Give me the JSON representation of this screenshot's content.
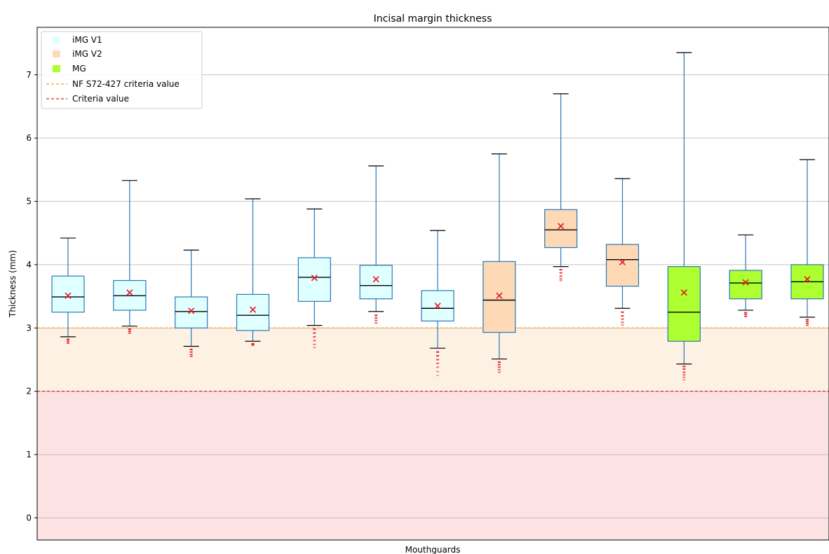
{
  "chart_data": {
    "type": "boxplot",
    "title": "Incisal margin thickness",
    "xlabel": "Mouthguards",
    "ylabel": "Thickness (mm)",
    "ylim": [
      -0.35,
      7.75
    ],
    "yticks": [
      0,
      1,
      2,
      3,
      4,
      5,
      6,
      7
    ],
    "grid": "horizontal",
    "legend_position": "top-left",
    "thresholds": [
      {
        "label": "NF S72-427 criteria value",
        "value": 3,
        "color": "#ff9f1c",
        "band_color": "#fdf1e4"
      },
      {
        "label": "Criteria value",
        "value": 2,
        "color": "#e0232a",
        "band_color": "#fde2e3"
      }
    ],
    "groups": [
      {
        "label": "iMG V1",
        "color": "#e0ffff"
      },
      {
        "label": "iMG V2",
        "color": "#fdd9b6"
      },
      {
        "label": "MG",
        "color": "#adff2f"
      }
    ],
    "boxes": [
      {
        "group": 0,
        "whisker_low": 2.86,
        "q1": 3.25,
        "median": 3.49,
        "q3": 3.82,
        "whisker_high": 4.42,
        "mean": 3.51,
        "outliers": [
          2.82,
          2.79,
          2.76
        ]
      },
      {
        "group": 0,
        "whisker_low": 3.03,
        "q1": 3.28,
        "median": 3.51,
        "q3": 3.75,
        "whisker_high": 5.33,
        "mean": 3.56,
        "outliers": [
          2.98,
          2.95,
          2.92
        ]
      },
      {
        "group": 0,
        "whisker_low": 2.71,
        "q1": 3.0,
        "median": 3.26,
        "q3": 3.49,
        "whisker_high": 4.23,
        "mean": 3.27,
        "outliers": [
          2.66,
          2.62,
          2.58,
          2.55
        ]
      },
      {
        "group": 0,
        "whisker_low": 2.79,
        "q1": 2.96,
        "median": 3.2,
        "q3": 3.53,
        "whisker_high": 5.04,
        "mean": 3.29,
        "outliers": [
          2.75,
          2.73
        ]
      },
      {
        "group": 0,
        "whisker_low": 3.04,
        "q1": 3.42,
        "median": 3.8,
        "q3": 4.11,
        "whisker_high": 4.88,
        "mean": 3.79,
        "outliers": [
          2.98,
          2.92,
          2.86,
          2.8,
          2.74,
          2.69
        ]
      },
      {
        "group": 0,
        "whisker_low": 3.26,
        "q1": 3.46,
        "median": 3.67,
        "q3": 3.99,
        "whisker_high": 5.56,
        "mean": 3.77,
        "outliers": [
          3.2,
          3.16,
          3.12,
          3.08
        ]
      },
      {
        "group": 0,
        "whisker_low": 2.68,
        "q1": 3.11,
        "median": 3.31,
        "q3": 3.59,
        "whisker_high": 4.54,
        "mean": 3.35,
        "outliers": [
          2.62,
          2.56,
          2.5,
          2.44,
          2.38,
          2.31,
          2.25
        ]
      },
      {
        "group": 1,
        "whisker_low": 2.51,
        "q1": 2.93,
        "median": 3.44,
        "q3": 4.05,
        "whisker_high": 5.75,
        "mean": 3.51,
        "outliers": [
          2.46,
          2.42,
          2.38,
          2.34,
          2.3
        ]
      },
      {
        "group": 1,
        "whisker_low": 3.97,
        "q1": 4.27,
        "median": 4.55,
        "q3": 4.87,
        "whisker_high": 6.7,
        "mean": 4.61,
        "outliers": [
          3.92,
          3.87,
          3.82,
          3.78,
          3.75
        ]
      },
      {
        "group": 1,
        "whisker_low": 3.31,
        "q1": 3.66,
        "median": 4.08,
        "q3": 4.32,
        "whisker_high": 5.36,
        "mean": 4.04,
        "outliers": [
          3.25,
          3.19,
          3.14,
          3.09,
          3.05
        ]
      },
      {
        "group": 2,
        "whisker_low": 2.43,
        "q1": 2.79,
        "median": 3.25,
        "q3": 3.97,
        "whisker_high": 7.35,
        "mean": 3.56,
        "outliers": [
          2.39,
          2.35,
          2.3,
          2.26,
          2.22,
          2.18
        ]
      },
      {
        "group": 2,
        "whisker_low": 3.28,
        "q1": 3.46,
        "median": 3.71,
        "q3": 3.91,
        "whisker_high": 4.47,
        "mean": 3.72,
        "outliers": [
          3.24,
          3.21,
          3.18
        ]
      },
      {
        "group": 2,
        "whisker_low": 3.17,
        "q1": 3.46,
        "median": 3.73,
        "q3": 4.0,
        "whisker_high": 5.66,
        "mean": 3.77,
        "outliers": [
          3.13,
          3.1,
          3.07,
          3.04
        ]
      }
    ]
  }
}
